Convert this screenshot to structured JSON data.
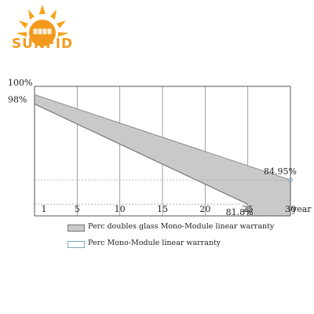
{
  "logo": {
    "text": "SUNFID",
    "brand_color": "#f39a1e"
  },
  "chart_data": {
    "type": "area",
    "x_ticks": [
      {
        "value": 1,
        "label": "1"
      },
      {
        "value": 5,
        "label": "5"
      },
      {
        "value": 10,
        "label": "10"
      },
      {
        "value": 15,
        "label": "15"
      },
      {
        "value": 20,
        "label": "20"
      },
      {
        "value": 25,
        "label": "25"
      },
      {
        "value": 30,
        "label": "30"
      }
    ],
    "x_unit": "year",
    "xlim": [
      0,
      30
    ],
    "ylim": [
      80,
      100
    ],
    "y_labels": [
      {
        "value": 100,
        "label": "100%"
      },
      {
        "value": 98,
        "label": "98%"
      }
    ],
    "series": [
      {
        "name": "Perc doubles glass Mono-Module linear warranty",
        "x": [
          0,
          30
        ],
        "y": [
          98,
          84.95
        ],
        "color": "#c9c9c9"
      },
      {
        "name": "Perc  Mono-Module linear warranty",
        "x": [
          0,
          25
        ],
        "y": [
          98,
          81.8
        ],
        "color": "#ffffff"
      }
    ],
    "annotations": [
      {
        "text": "84.95%",
        "x": 30,
        "y": 84.95
      },
      {
        "text": "81.8%",
        "x": 25,
        "y": 81.8
      }
    ],
    "grid": true,
    "legend_position": "bottom"
  }
}
